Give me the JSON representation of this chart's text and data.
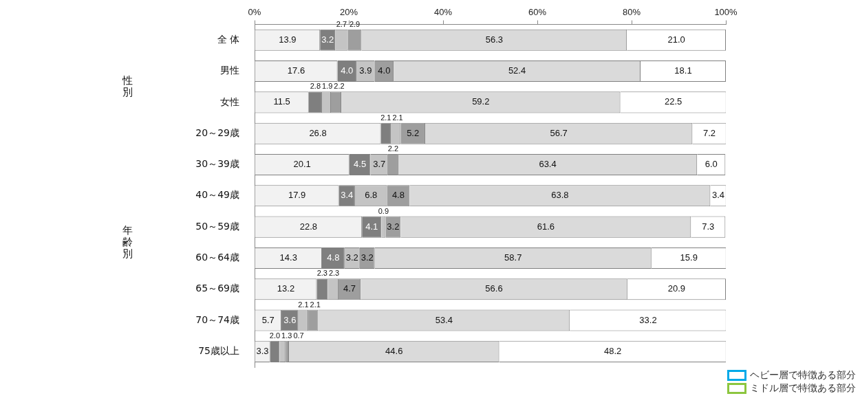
{
  "chart_data": {
    "type": "bar",
    "orientation": "horizontal",
    "stacked": true,
    "grid": false,
    "legend": false,
    "categories": [
      "全 体",
      "男性",
      "女性",
      "20～29歳",
      "30～39歳",
      "40～49歳",
      "50～59歳",
      "60～64歳",
      "65～69歳",
      "70～74歳",
      "75歳以上"
    ],
    "xlim": [
      0,
      100
    ],
    "xticks": [
      {
        "value": 0,
        "label": "0%"
      },
      {
        "value": 20,
        "label": "20%"
      },
      {
        "value": 40,
        "label": "40%"
      },
      {
        "value": 60,
        "label": "60%"
      },
      {
        "value": 80,
        "label": "80%"
      },
      {
        "value": 100,
        "label": "100%"
      }
    ],
    "series": [
      {
        "color": "#f2f2f2",
        "values": [
          13.9,
          17.6,
          11.5,
          26.8,
          20.1,
          17.9,
          22.8,
          14.3,
          13.2,
          5.7,
          3.3
        ],
        "value_labels": [
          "13.9",
          "17.6",
          "11.5",
          "26.8",
          "20.1",
          "17.9",
          "22.8",
          "14.3",
          "13.2",
          "5.7",
          "3.3"
        ]
      },
      {
        "color": "#7f7f7f",
        "values": [
          3.2,
          4.0,
          2.8,
          2.1,
          4.5,
          3.4,
          4.1,
          4.8,
          2.3,
          3.6,
          2.0
        ],
        "value_labels": [
          "3.2",
          "4.0",
          "2.8",
          "2.1",
          "4.5",
          "3.4",
          "4.1",
          "4.8",
          "2.3",
          "3.6",
          "2.0"
        ]
      },
      {
        "color": "#c4c4c4",
        "values": [
          2.7,
          3.9,
          1.9,
          2.1,
          3.7,
          6.8,
          0.9,
          3.2,
          2.3,
          2.1,
          1.3
        ],
        "value_labels": [
          "2.7",
          "3.9",
          "1.9",
          "2.1",
          "3.7",
          "6.8",
          "0.9",
          "3.2",
          "2.3",
          "2.1",
          "1.3"
        ]
      },
      {
        "color": "#9e9e9e",
        "values": [
          2.9,
          4.0,
          2.2,
          5.2,
          2.2,
          4.8,
          3.2,
          3.2,
          4.7,
          2.1,
          0.7
        ],
        "value_labels": [
          "2.9",
          "4.0",
          "2.2",
          "5.2",
          "2.2",
          "4.8",
          "3.2",
          "3.2",
          "4.7",
          "2.1",
          "0.7"
        ]
      },
      {
        "color": "#dadada",
        "values": [
          56.3,
          52.4,
          59.2,
          56.7,
          63.4,
          63.8,
          61.6,
          58.7,
          56.6,
          53.4,
          44.6
        ],
        "value_labels": [
          "56.3",
          "52.4",
          "59.2",
          "56.7",
          "63.4",
          "63.8",
          "61.6",
          "58.7",
          "56.6",
          "53.4",
          "44.6"
        ]
      },
      {
        "color": "#ffffff",
        "values": [
          21.0,
          18.1,
          22.5,
          7.2,
          6.0,
          3.4,
          7.3,
          15.9,
          20.9,
          33.2,
          48.2
        ],
        "value_labels": [
          "21.0",
          "18.1",
          "22.5",
          "7.2",
          "6.0",
          "3.4",
          "7.3",
          "15.9",
          "20.9",
          "33.2",
          "48.2"
        ]
      }
    ],
    "annotations": [
      "性別",
      "年齢別",
      "ヘビー層で特徴ある部分",
      "ミドル層で特徴ある部分"
    ]
  }
}
